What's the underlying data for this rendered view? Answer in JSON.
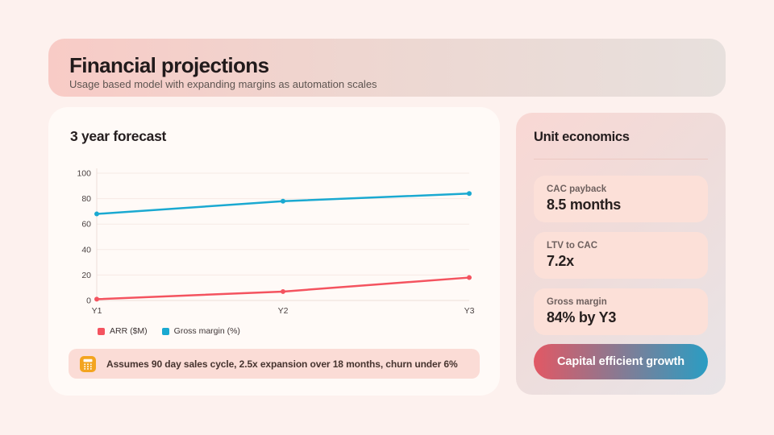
{
  "header": {
    "title": "Financial projections",
    "subtitle": "Usage based model with expanding margins as automation scales"
  },
  "forecast_card": {
    "title": "3 year forecast",
    "note_text": "Assumes 90 day sales cycle, 2.5x expansion over 18 months, churn under 6%",
    "note_icon": "calculator-icon"
  },
  "chart_data": {
    "type": "line",
    "title": "3 year forecast",
    "categories": [
      "Y1",
      "Y2",
      "Y3"
    ],
    "series": [
      {
        "name": "ARR ($M)",
        "color": "#f4535f",
        "values": [
          1,
          7,
          18
        ]
      },
      {
        "name": "Gross margin (%)",
        "color": "#1aa9d1",
        "values": [
          68,
          78,
          84
        ]
      }
    ],
    "xlabel": "",
    "ylabel": "",
    "ylim": [
      0,
      100
    ],
    "yticks": [
      0,
      20,
      40,
      60,
      80,
      100
    ],
    "grid": true,
    "legend_position": "bottom-left"
  },
  "unit_economics": {
    "title": "Unit economics",
    "stats": [
      {
        "label": "CAC payback",
        "value": "8.5 months"
      },
      {
        "label": "LTV to CAC",
        "value": "7.2x"
      },
      {
        "label": "Gross margin",
        "value": "84% by Y3"
      }
    ],
    "cta_label": "Capital efficient growth"
  },
  "theme": {
    "page_bg": "#fdf1ee",
    "card_bg": "#fffaf7",
    "accent_red": "#f4535f",
    "accent_blue": "#1aa9d1",
    "stat_card_bg": "#fce0d8",
    "note_bg": "#fbdcd6",
    "note_icon_color": "#f3a41f",
    "header_gradient": [
      "#f8cbc6",
      "#e7e0dd"
    ],
    "cta_gradient": [
      "#e25864",
      "#2a9dc3"
    ]
  }
}
